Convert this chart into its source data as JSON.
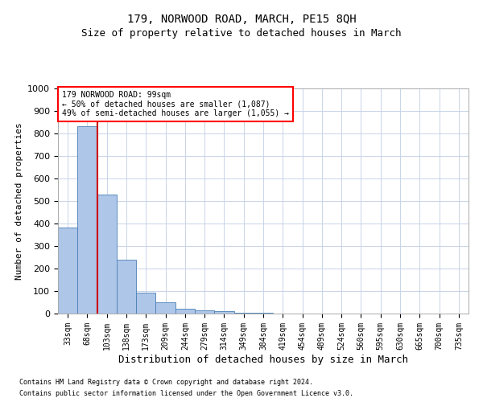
{
  "title": "179, NORWOOD ROAD, MARCH, PE15 8QH",
  "subtitle": "Size of property relative to detached houses in March",
  "xlabel": "Distribution of detached houses by size in March",
  "ylabel": "Number of detached properties",
  "bar_categories": [
    "33sqm",
    "68sqm",
    "103sqm",
    "138sqm",
    "173sqm",
    "209sqm",
    "244sqm",
    "279sqm",
    "314sqm",
    "349sqm",
    "384sqm",
    "419sqm",
    "454sqm",
    "489sqm",
    "524sqm",
    "560sqm",
    "595sqm",
    "630sqm",
    "665sqm",
    "700sqm",
    "735sqm"
  ],
  "bar_values": [
    383,
    833,
    528,
    240,
    93,
    50,
    20,
    15,
    12,
    5,
    5,
    0,
    0,
    0,
    0,
    0,
    0,
    0,
    0,
    0,
    0
  ],
  "bar_color": "#aec6e8",
  "bar_edge_color": "#4a7fb5",
  "vline_x_idx": 1,
  "vline_color": "#cc0000",
  "ylim": [
    0,
    1000
  ],
  "yticks": [
    0,
    100,
    200,
    300,
    400,
    500,
    600,
    700,
    800,
    900,
    1000
  ],
  "annotation_text": "179 NORWOOD ROAD: 99sqm\n← 50% of detached houses are smaller (1,087)\n49% of semi-detached houses are larger (1,055) →",
  "footer_line1": "Contains HM Land Registry data © Crown copyright and database right 2024.",
  "footer_line2": "Contains public sector information licensed under the Open Government Licence v3.0.",
  "background_color": "#ffffff",
  "grid_color": "#c8d4e8",
  "title_fontsize": 10,
  "subtitle_fontsize": 9,
  "axis_label_fontsize": 9,
  "tick_fontsize": 7,
  "ylabel_fontsize": 8
}
